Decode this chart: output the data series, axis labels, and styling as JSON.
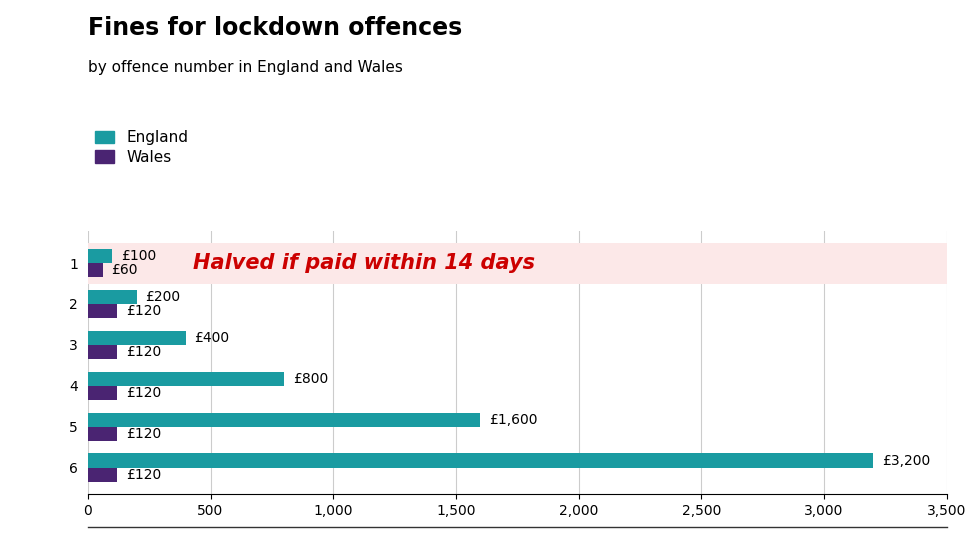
{
  "title": "Fines for lockdown offences",
  "subtitle": "by offence number in England and Wales",
  "england_values": [
    100,
    200,
    400,
    800,
    1600,
    3200
  ],
  "wales_values": [
    60,
    120,
    120,
    120,
    120,
    120
  ],
  "england_labels": [
    "£100",
    "£200",
    "£400",
    "£800",
    "£1,600",
    "£3,200"
  ],
  "wales_labels": [
    "£60",
    "£120",
    "£120",
    "£120",
    "£120",
    "£120"
  ],
  "categories": [
    "1",
    "2",
    "3",
    "4",
    "5",
    "6"
  ],
  "england_color": "#1a9ba1",
  "wales_color": "#4a2472",
  "annotation_text": "Halved if paid within 14 days",
  "annotation_color": "#cc0000",
  "highlight_bg": "#fce8e8",
  "xlim": [
    0,
    3500
  ],
  "xticks": [
    0,
    500,
    1000,
    1500,
    2000,
    2500,
    3000,
    3500
  ],
  "xtick_labels": [
    "0",
    "500",
    "1,000",
    "1,500",
    "2,000",
    "2,500",
    "3,000",
    "3,500"
  ],
  "bar_height": 0.35,
  "background_color": "#ffffff",
  "grid_color": "#cccccc",
  "legend_england": "England",
  "legend_wales": "Wales",
  "title_fontsize": 17,
  "subtitle_fontsize": 11,
  "label_fontsize": 10,
  "tick_fontsize": 10,
  "annotation_fontsize": 15
}
